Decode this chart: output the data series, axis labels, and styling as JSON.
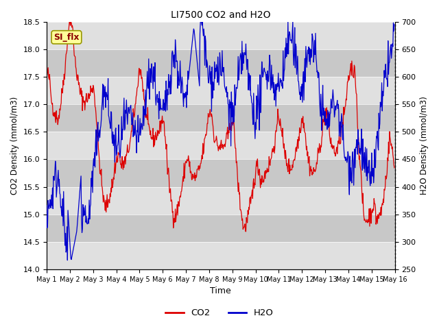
{
  "title": "LI7500 CO2 and H2O",
  "xlabel": "Time",
  "ylabel_left": "CO2 Density (mmol/m3)",
  "ylabel_right": "H2O Density (mmol/m3)",
  "ylim_left": [
    14.0,
    18.5
  ],
  "ylim_right": [
    250,
    700
  ],
  "yticks_left": [
    14.0,
    14.5,
    15.0,
    15.5,
    16.0,
    16.5,
    17.0,
    17.5,
    18.0,
    18.5
  ],
  "yticks_right": [
    250,
    300,
    350,
    400,
    450,
    500,
    550,
    600,
    650,
    700
  ],
  "xtick_labels": [
    "May 1",
    "May 2",
    "May 3",
    "May 4",
    "May 5",
    "May 6",
    "May 7",
    "May 8",
    "May 9",
    "May 10",
    "May 11",
    "May 12",
    "May 13",
    "May 14",
    "May 15",
    "May 16"
  ],
  "co2_color": "#dd0000",
  "h2o_color": "#0000cc",
  "bg_color": "#ffffff",
  "plot_bg_light": "#e0e0e0",
  "plot_bg_dark": "#c8c8c8",
  "annotation_text": "SI_flx",
  "annotation_bg": "#ffff99",
  "annotation_edge": "#999900",
  "legend_co2": "CO2",
  "legend_h2o": "H2O",
  "n_days": 15,
  "n_points_per_day": 48
}
